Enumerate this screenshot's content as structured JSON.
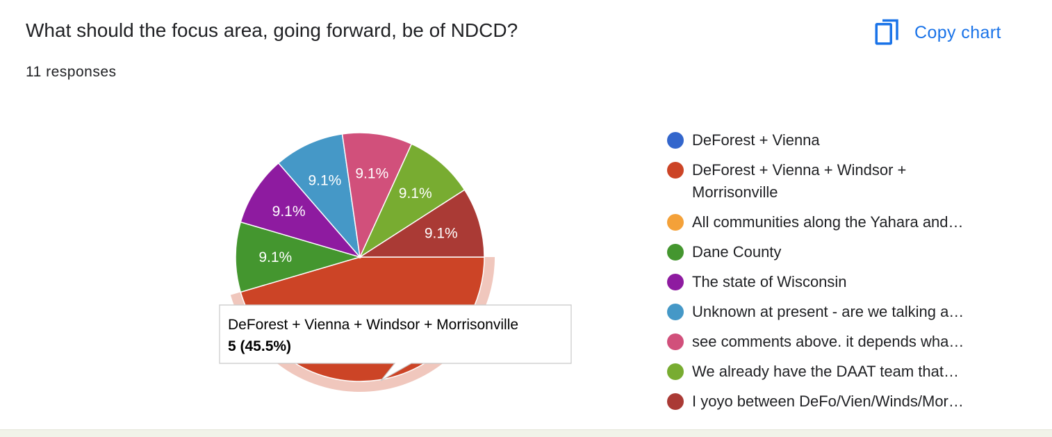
{
  "header": {
    "title": "What should the focus area, going forward, be of NDCD?",
    "responses": "11 responses",
    "copy_label": "Copy chart",
    "copy_icon": "copy-icon"
  },
  "colors": {
    "accent": "#1a73e8"
  },
  "chart_data": {
    "type": "pie",
    "total_responses": 11,
    "slices": [
      {
        "label": "DeForest + Vienna",
        "value": 0,
        "percent": "",
        "color": "#3366cc"
      },
      {
        "label": "DeForest + Vienna + Windsor + Morrisonville",
        "value": 5,
        "percent": "45.5%",
        "color": "#cc4426"
      },
      {
        "label": "All communities along the Yahara and…",
        "value": 0,
        "percent": "",
        "color": "#f4a139"
      },
      {
        "label": "Dane County",
        "value": 1,
        "percent": "9.1%",
        "color": "#44962f"
      },
      {
        "label": "The state of Wisconsin",
        "value": 1,
        "percent": "9.1%",
        "color": "#8e1ba0"
      },
      {
        "label": "Unknown at present - are we talking a…",
        "value": 1,
        "percent": "9.1%",
        "color": "#4598c7"
      },
      {
        "label": "see comments above. it depends wha…",
        "value": 1,
        "percent": "9.1%",
        "color": "#d1507b"
      },
      {
        "label": "We already have the DAAT team that…",
        "value": 1,
        "percent": "9.1%",
        "color": "#78ac31"
      },
      {
        "label": "I yoyo between DeFo/Vien/Winds/Mor…",
        "value": 1,
        "percent": "9.1%",
        "color": "#aa3a35"
      }
    ],
    "legend_position": "right",
    "highlighted": {
      "label": "DeForest + Vienna + Windsor + Morrisonville",
      "value_text": "5 (45.5%)"
    }
  }
}
